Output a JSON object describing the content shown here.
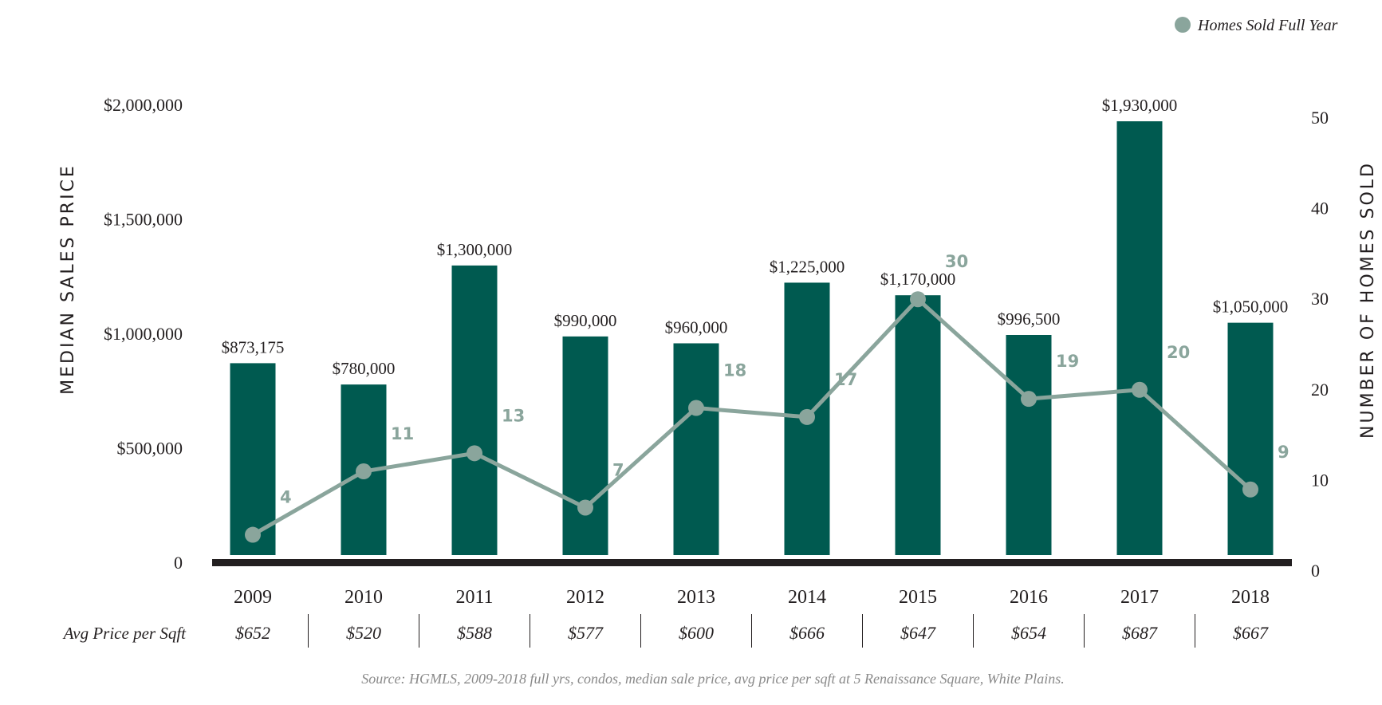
{
  "legend": {
    "label": "Homes Sold Full Year",
    "position": "top-right"
  },
  "left_axis_title": "MEDIAN SALES PRICE",
  "right_axis_title": "NUMBER OF HOMES SOLD",
  "row_label": "Avg Price per Sqft",
  "source": "Source: HGMLS, 2009-2018 full yrs, condos, median sale price, avg price per sqft at 5 Renaissance Square, White Plains.",
  "colors": {
    "bar": "#005a50",
    "line": "#8aa59c",
    "axis": "#231f20",
    "text": "#231f20",
    "source": "#8a8a8a"
  },
  "chart_data": {
    "type": "bar",
    "categories": [
      "2009",
      "2010",
      "2011",
      "2012",
      "2013",
      "2014",
      "2015",
      "2016",
      "2017",
      "2018"
    ],
    "series": [
      {
        "values": [
          873175,
          780000,
          1300000,
          990000,
          960000,
          1225000,
          1170000,
          996500,
          1930000,
          1050000
        ],
        "labels": [
          "$873,175",
          "$780,000",
          "$1,300,000",
          "$990,000",
          "$960,000",
          "$1,225,000",
          "$1,170,000",
          "$996,500",
          "$1,930,000",
          "$1,050,000"
        ],
        "axis": "left",
        "type": "bar"
      },
      {
        "name": "Homes Sold Full Year",
        "values": [
          4,
          11,
          13,
          7,
          18,
          17,
          30,
          19,
          20,
          9
        ],
        "axis": "right",
        "type": "line"
      }
    ],
    "price_per_sqft": [
      "$652",
      "$520",
      "$588",
      "$577",
      "$600",
      "$666",
      "$647",
      "$654",
      "$687",
      "$667"
    ],
    "left_axis": {
      "ylim": [
        0,
        2000000
      ],
      "ticks": [
        0,
        500000,
        1000000,
        1500000,
        2000000
      ],
      "tick_labels": [
        "0",
        "$500,000",
        "$1,000,000",
        "$1,500,000",
        "$2,000,000"
      ]
    },
    "right_axis": {
      "ylim": [
        0,
        50
      ],
      "ticks": [
        0,
        10,
        20,
        30,
        40,
        50
      ],
      "tick_labels": [
        "0",
        "10",
        "20",
        "30",
        "40",
        "50"
      ]
    },
    "grid": false
  }
}
